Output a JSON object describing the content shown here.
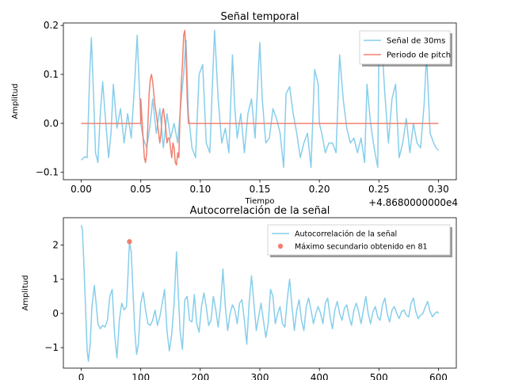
{
  "chart_data": [
    {
      "type": "line",
      "title": "Señal temporal",
      "xlabel": "Tiempo",
      "ylabel": "Amplitud",
      "offset_label": "+4.8680000000e4",
      "xlim": [
        -0.015,
        0.315
      ],
      "ylim": [
        -0.115,
        0.205
      ],
      "x_ticks": [
        0.0,
        0.05,
        0.1,
        0.15,
        0.2,
        0.25,
        0.3
      ],
      "x_tick_labels": [
        "0.00",
        "0.05",
        "0.10",
        "0.15",
        "0.20",
        "0.25",
        "0.30"
      ],
      "y_ticks": [
        -0.1,
        0.0,
        0.1,
        0.2
      ],
      "y_tick_labels": [
        "−0.1",
        "0.0",
        "0.1",
        "0.2"
      ],
      "legend_position": "top-right",
      "series": [
        {
          "name": "Señal de 30ms",
          "color": "#87ceeb",
          "x": [
            0.0,
            0.003,
            0.005,
            0.007,
            0.0085,
            0.01,
            0.012,
            0.014,
            0.016,
            0.018,
            0.02,
            0.023,
            0.025,
            0.027,
            0.03,
            0.033,
            0.036,
            0.039,
            0.042,
            0.045,
            0.047,
            0.049,
            0.05,
            0.052,
            0.055,
            0.058,
            0.06,
            0.063,
            0.066,
            0.069,
            0.072,
            0.075,
            0.078,
            0.081,
            0.084,
            0.086,
            0.088,
            0.09,
            0.093,
            0.096,
            0.099,
            0.102,
            0.105,
            0.108,
            0.11,
            0.112,
            0.115,
            0.118,
            0.121,
            0.124,
            0.127,
            0.129,
            0.131,
            0.134,
            0.137,
            0.14,
            0.143,
            0.146,
            0.149,
            0.15,
            0.152,
            0.155,
            0.158,
            0.161,
            0.164,
            0.167,
            0.17,
            0.172,
            0.175,
            0.178,
            0.181,
            0.184,
            0.187,
            0.19,
            0.193,
            0.196,
            0.199,
            0.2,
            0.202,
            0.205,
            0.208,
            0.211,
            0.214,
            0.217,
            0.22,
            0.223,
            0.226,
            0.229,
            0.232,
            0.235,
            0.238,
            0.24,
            0.243,
            0.246,
            0.249,
            0.25,
            0.252,
            0.255,
            0.258,
            0.261,
            0.264,
            0.267,
            0.27,
            0.273,
            0.276,
            0.279,
            0.282,
            0.285,
            0.288,
            0.29,
            0.293,
            0.296,
            0.298,
            0.3
          ],
          "y": [
            -0.075,
            -0.068,
            -0.07,
            0.095,
            0.175,
            0.08,
            -0.06,
            -0.08,
            0.02,
            0.085,
            0.02,
            -0.07,
            -0.02,
            0.08,
            -0.01,
            0.03,
            -0.04,
            0.02,
            -0.03,
            0.09,
            0.18,
            0.06,
            0.0,
            -0.03,
            -0.05,
            0.0,
            0.05,
            -0.02,
            0.03,
            -0.05,
            0.02,
            -0.03,
            0.0,
            -0.04,
            0.05,
            0.1,
            0.17,
            0.02,
            -0.05,
            -0.07,
            0.1,
            0.12,
            -0.04,
            -0.06,
            0.07,
            0.19,
            0.05,
            -0.04,
            -0.01,
            -0.06,
            0.14,
            0.03,
            -0.03,
            0.02,
            -0.06,
            0.02,
            0.05,
            -0.03,
            0.12,
            0.165,
            0.05,
            -0.04,
            -0.03,
            0.03,
            0.01,
            -0.02,
            -0.09,
            0.06,
            0.075,
            0.02,
            -0.02,
            -0.07,
            -0.04,
            -0.02,
            -0.09,
            0.11,
            0.08,
            0.0,
            -0.02,
            -0.06,
            -0.04,
            -0.04,
            -0.06,
            0.14,
            0.05,
            -0.01,
            -0.04,
            -0.03,
            -0.06,
            -0.03,
            -0.08,
            0.08,
            0.0,
            -0.05,
            -0.09,
            0.14,
            0.18,
            0.06,
            -0.04,
            0.05,
            0.08,
            -0.07,
            -0.04,
            0.01,
            -0.06,
            0.0,
            -0.04,
            -0.05,
            0.04,
            0.14,
            -0.02,
            -0.04,
            -0.05,
            -0.055
          ]
        },
        {
          "name": "Periodo de pitch",
          "color": "#f08070",
          "x": [
            0.0,
            0.05,
            0.05,
            0.051,
            0.052,
            0.053,
            0.054,
            0.055,
            0.056,
            0.057,
            0.058,
            0.059,
            0.06,
            0.061,
            0.062,
            0.063,
            0.064,
            0.065,
            0.066,
            0.067,
            0.068,
            0.069,
            0.07,
            0.071,
            0.072,
            0.073,
            0.074,
            0.075,
            0.076,
            0.077,
            0.078,
            0.079,
            0.08,
            0.081,
            0.082,
            0.083,
            0.084,
            0.085,
            0.086,
            0.087,
            0.088,
            0.089,
            0.09,
            0.09,
            0.3
          ],
          "y": [
            0.0,
            0.0,
            0.05,
            0.01,
            -0.03,
            -0.07,
            -0.08,
            -0.06,
            0.0,
            0.06,
            0.09,
            0.1,
            0.085,
            0.06,
            0.035,
            0.02,
            0.0,
            -0.02,
            -0.04,
            -0.02,
            0.02,
            0.03,
            0.01,
            -0.01,
            -0.04,
            -0.03,
            -0.03,
            -0.05,
            -0.07,
            -0.04,
            -0.05,
            -0.08,
            -0.085,
            -0.06,
            -0.07,
            0.02,
            0.08,
            0.12,
            0.18,
            0.19,
            0.14,
            0.05,
            0.0,
            0.0,
            0.0
          ]
        }
      ]
    },
    {
      "type": "line",
      "title": "Autocorrelación de la señal",
      "xlabel": "",
      "ylabel": "Amplitud",
      "xlim": [
        -30,
        630
      ],
      "ylim": [
        -1.6,
        2.8
      ],
      "x_ticks": [
        0,
        100,
        200,
        300,
        400,
        500,
        600
      ],
      "x_tick_labels": [
        "0",
        "100",
        "200",
        "300",
        "400",
        "500",
        "600"
      ],
      "y_ticks": [
        -1,
        0,
        1,
        2
      ],
      "y_tick_labels": [
        "−1",
        "0",
        "1",
        "2"
      ],
      "legend_position": "top-right",
      "series": [
        {
          "name": "Autocorrelación de la señal",
          "color": "#87ceeb",
          "x": [
            0,
            2,
            5,
            8,
            10,
            12,
            15,
            18,
            22,
            25,
            28,
            32,
            36,
            40,
            44,
            48,
            52,
            56,
            60,
            64,
            68,
            72,
            76,
            79,
            81,
            84,
            87,
            90,
            93,
            96,
            100,
            104,
            108,
            112,
            116,
            120,
            124,
            128,
            132,
            136,
            140,
            144,
            148,
            152,
            156,
            160,
            163,
            166,
            170,
            174,
            178,
            182,
            186,
            190,
            194,
            198,
            202,
            206,
            210,
            214,
            218,
            222,
            226,
            230,
            234,
            238,
            242,
            246,
            250,
            254,
            258,
            262,
            266,
            270,
            274,
            278,
            282,
            286,
            290,
            294,
            298,
            302,
            306,
            310,
            314,
            318,
            322,
            326,
            330,
            334,
            338,
            342,
            346,
            350,
            354,
            358,
            362,
            366,
            370,
            374,
            378,
            382,
            386,
            390,
            394,
            398,
            402,
            406,
            410,
            414,
            418,
            422,
            426,
            430,
            434,
            438,
            442,
            446,
            450,
            454,
            458,
            462,
            466,
            470,
            474,
            478,
            482,
            486,
            490,
            494,
            498,
            502,
            506,
            510,
            514,
            518,
            522,
            526,
            530,
            534,
            538,
            542,
            546,
            550,
            554,
            558,
            562,
            566,
            570,
            574,
            578,
            582,
            586,
            590,
            594,
            598,
            600
          ],
          "y": [
            2.58,
            2.45,
            1.2,
            -0.2,
            -1.1,
            -1.4,
            -0.9,
            0.2,
            0.82,
            0.3,
            -0.3,
            -0.45,
            -0.35,
            -0.4,
            -0.2,
            0.5,
            0.7,
            -0.6,
            -1.3,
            -0.2,
            0.3,
            0.1,
            0.2,
            1.3,
            2.1,
            1.8,
            0.6,
            -0.5,
            -1.2,
            -0.9,
            0.3,
            0.62,
            0.1,
            -0.3,
            -0.35,
            -0.2,
            0.1,
            -0.35,
            -0.1,
            0.3,
            0.7,
            -0.5,
            -1.1,
            -0.6,
            0.3,
            1.8,
            0.6,
            -0.5,
            -1.05,
            0.4,
            0.5,
            -0.2,
            -0.25,
            0.55,
            -0.3,
            -0.55,
            0.2,
            0.6,
            0.2,
            -0.35,
            -0.2,
            0.5,
            0.1,
            -0.4,
            0.2,
            1.3,
            0.2,
            -0.5,
            0.0,
            0.25,
            0.1,
            -0.3,
            0.3,
            0.4,
            -0.2,
            -0.9,
            0.3,
            1.1,
            0.3,
            -0.5,
            -0.1,
            0.3,
            -0.2,
            -0.7,
            -0.3,
            0.7,
            0.5,
            -0.3,
            0.0,
            0.2,
            -0.3,
            -0.4,
            0.4,
            1.0,
            0.2,
            -0.5,
            0.1,
            0.4,
            -0.2,
            -0.5,
            0.2,
            0.45,
            0.1,
            -0.3,
            0.0,
            0.2,
            0.0,
            -0.3,
            0.3,
            0.45,
            -0.1,
            -0.45,
            0.1,
            0.35,
            0.0,
            -0.2,
            0.15,
            0.25,
            -0.1,
            -0.35,
            0.1,
            0.3,
            0.05,
            -0.3,
            0.1,
            0.5,
            0.0,
            -0.3,
            0.05,
            0.2,
            -0.1,
            -0.2,
            0.25,
            0.45,
            0.0,
            -0.25,
            0.1,
            0.2,
            0.0,
            -0.15,
            0.05,
            0.1,
            -0.05,
            -0.1,
            0.3,
            0.45,
            0.05,
            -0.15,
            -0.05,
            0.0,
            0.2,
            0.35,
            0.05,
            -0.1,
            0.0,
            0.05,
            0.0
          ],
          "markers": false
        },
        {
          "name": "Máximo secundario obtenido en 81",
          "color": "#f08070",
          "x": [
            81
          ],
          "y": [
            2.1
          ],
          "markers": true
        }
      ]
    }
  ]
}
